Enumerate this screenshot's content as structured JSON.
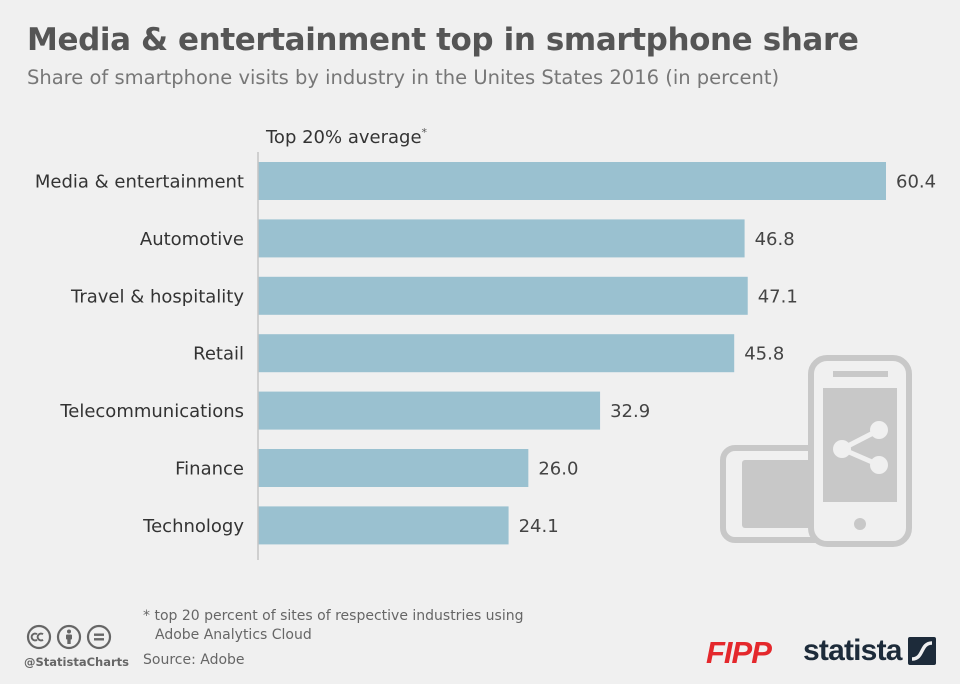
{
  "title": "Media & entertainment top in smartphone share",
  "subtitle": "Share of smartphone visits by industry in the Unites States 2016 (in percent)",
  "column_header": "Top 20% average",
  "column_header_mark": "*",
  "footnote": {
    "line1": "* top 20 percent of sites of respective industries using",
    "line2": "Adobe Analytics Cloud"
  },
  "source": "Source: Adobe",
  "handle": "@StatistaCharts",
  "brands": {
    "fipp": "FIPP",
    "statista": "statista"
  },
  "icons": {
    "license": [
      "cc-icon",
      "attribution-icon",
      "no-derivatives-icon"
    ],
    "illustration": "smartphones-share-icon",
    "statista_logo": "statista-logo-icon"
  },
  "colors": {
    "bar": "#9ac1d0",
    "background": "#f0f0f0",
    "icon": "#c8c8c8",
    "fipp": "#e4282c",
    "statista": "#1d2b3a"
  },
  "chart_data": {
    "type": "bar",
    "orientation": "horizontal",
    "title": "Media & entertainment top in smartphone share",
    "subtitle": "Share of smartphone visits by industry in the Unites States 2016 (in percent)",
    "categories": [
      "Media & entertainment",
      "Automotive",
      "Travel & hospitality",
      "Retail",
      "Telecommunications",
      "Finance",
      "Technology"
    ],
    "values": [
      60.4,
      46.8,
      47.1,
      45.8,
      32.9,
      26.0,
      24.1
    ],
    "value_labels": [
      "60.4",
      "46.8",
      "47.1",
      "45.8",
      "32.9",
      "26.0",
      "24.1"
    ],
    "series_name": "Top 20% average",
    "xlabel": "",
    "ylabel": "",
    "xlim": [
      0,
      60.4
    ],
    "grid": false,
    "legend": "none"
  }
}
